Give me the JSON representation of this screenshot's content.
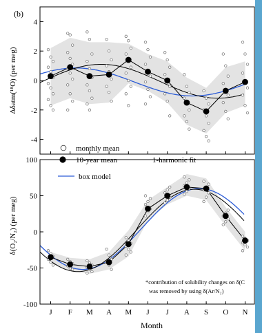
{
  "panel_label": "(b)",
  "months": [
    "J",
    "F",
    "M",
    "A",
    "M",
    "J",
    "J",
    "A",
    "S",
    "O",
    "N"
  ],
  "xlabel": "Month",
  "note_line1": "*contribution of solubility changes on δ(C",
  "note_line2": "was removed by using δ(Ar/N₂)",
  "legend": {
    "monthly_mean": "monthly mean",
    "ten_year_mean": "10-year mean",
    "harmonic_fit": "1-harmonic fit",
    "box_model": "box model"
  },
  "colors": {
    "envelope": "#e3e3e3",
    "fit_line": "#000000",
    "box_model": "#2a5bd7",
    "mean_marker": "#000000",
    "open_circle": "#6e6e6e",
    "right_edge": "#5aa6cf"
  },
  "chart_data": [
    {
      "type": "scatter",
      "ylabel": "Δδatm(¹⁸O) (per meg)",
      "ylim": [
        -5,
        5
      ],
      "yticks": [
        -4,
        -2,
        0,
        2,
        4
      ],
      "x": [
        1,
        2,
        3,
        4,
        5,
        6,
        7,
        8,
        9,
        10,
        11
      ],
      "ten_year_mean": [
        0.3,
        0.9,
        0.3,
        0.4,
        1.4,
        0.6,
        0.0,
        -1.5,
        -2.1,
        -0.7,
        -0.1
      ],
      "monthly_mean": [
        [
          2.1,
          1.6,
          1.3,
          0.9,
          0.6,
          0.2,
          -0.2,
          -0.5,
          -0.9,
          -1.3,
          -1.7,
          -2.0
        ],
        [
          3.2,
          3.1,
          2.4,
          1.9,
          1.5,
          1.1,
          0.8,
          0.5,
          0.1,
          -0.3,
          -0.9,
          -1.4,
          -2.0
        ],
        [
          3.3,
          2.8,
          1.8,
          1.3,
          0.8,
          0.2,
          -0.3,
          -0.7,
          -1.2,
          -1.6,
          -2.0
        ],
        [
          2.8,
          2.0,
          1.4,
          1.0,
          0.6,
          0.1,
          -0.4,
          -0.8,
          -1.4
        ],
        [
          3.0,
          2.7,
          2.2,
          1.8,
          1.4,
          0.9,
          0.5,
          0.0,
          -0.4,
          -0.9,
          -1.7
        ],
        [
          2.6,
          2.1,
          1.6,
          1.1,
          0.7,
          0.3,
          -0.1,
          -0.6,
          -1.1,
          -1.6
        ],
        [
          1.9,
          1.4,
          0.9,
          0.4,
          0.0,
          -0.4,
          -0.9,
          -1.4,
          -2.4
        ],
        [
          0.4,
          -0.4,
          -0.8,
          -1.2,
          -1.6,
          -2.0,
          -2.4,
          -2.8,
          -3.3
        ],
        [
          -0.7,
          -1.2,
          -1.6,
          -2.0,
          -2.4,
          -2.9,
          -3.4,
          -3.8,
          -4.1
        ],
        [
          1.8,
          1.0,
          0.3,
          -0.2,
          -0.6,
          -1.0,
          -1.5,
          -2.1,
          -2.6
        ],
        [
          2.6,
          1.8,
          1.1,
          0.5,
          0.0,
          -0.5,
          -1.0,
          -1.7,
          -2.2
        ]
      ],
      "band_upper": [
        2.2,
        2.9,
        2.6,
        2.6,
        2.5,
        1.8,
        1.3,
        0.2,
        -0.5,
        0.9,
        1.3
      ],
      "band_lower": [
        -1.7,
        -1.2,
        -1.6,
        -1.5,
        -0.2,
        -0.7,
        -1.5,
        -3.0,
        -3.6,
        -2.2,
        -1.7
      ],
      "harmonic_fit": {
        "mean": -0.05,
        "amplitude": 1.15,
        "peak_month": 3.6
      },
      "box_model": {
        "mean": -0.1,
        "amplitude": 0.95,
        "peak_month": 2.3
      }
    },
    {
      "type": "scatter",
      "ylabel": "δ(O₂/N₂) (per meg)",
      "ylim": [
        -100,
        100
      ],
      "yticks": [
        -100,
        -50,
        0,
        50,
        100
      ],
      "x": [
        1,
        2,
        3,
        4,
        5,
        6,
        7,
        8,
        9,
        10,
        11
      ],
      "ten_year_mean": [
        -35,
        -45,
        -48,
        -42,
        -17,
        32,
        50,
        62,
        60,
        22,
        -12
      ],
      "monthly_mean": [
        [
          -26,
          -30,
          -34,
          -38,
          -42,
          -46
        ],
        [
          -38,
          -41,
          -44,
          -47,
          -50,
          -52
        ],
        [
          -40,
          -43,
          -46,
          -49,
          -52,
          -55,
          -57
        ],
        [
          -24,
          -32,
          -38,
          -42,
          -46,
          -52
        ],
        [
          -8,
          -12,
          -16,
          -20,
          -24,
          -28,
          -32
        ],
        [
          22,
          28,
          32,
          38,
          42,
          46,
          50
        ],
        [
          40,
          44,
          48,
          54,
          58,
          62
        ],
        [
          52,
          56,
          60,
          64,
          68,
          72,
          76
        ],
        [
          42,
          48,
          54,
          58,
          62,
          66,
          70
        ],
        [
          10,
          14,
          18,
          22,
          26,
          30
        ],
        [
          -6,
          -9,
          -12,
          -15,
          -18,
          -21,
          -26
        ]
      ],
      "band_upper": [
        -28,
        -36,
        -38,
        -28,
        2,
        44,
        62,
        80,
        74,
        34,
        0
      ],
      "band_lower": [
        -44,
        -54,
        -58,
        -52,
        -34,
        16,
        38,
        50,
        44,
        8,
        -26
      ],
      "harmonic_fit": {
        "mean": 2,
        "amplitude": 57,
        "peak_month": 8.4
      },
      "box_model": {
        "mean": 4,
        "amplitude": 56,
        "peak_month": 8.65
      }
    }
  ]
}
